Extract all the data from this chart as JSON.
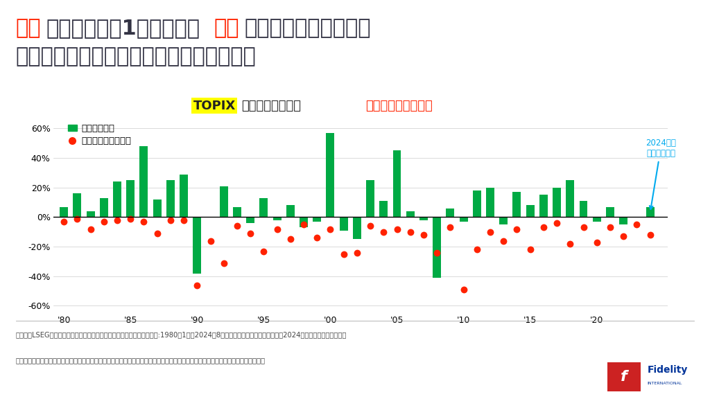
{
  "years": [
    1980,
    1981,
    1982,
    1983,
    1984,
    1985,
    1986,
    1987,
    1988,
    1989,
    1990,
    1991,
    1992,
    1993,
    1994,
    1995,
    1996,
    1997,
    1998,
    1999,
    2000,
    2001,
    2002,
    2003,
    2004,
    2005,
    2006,
    2007,
    2008,
    2009,
    2010,
    2011,
    2012,
    2013,
    2014,
    2015,
    2016,
    2017,
    2018,
    2019,
    2020,
    2021,
    2022,
    2023,
    2024
  ],
  "annual_returns": [
    7,
    16,
    4,
    13,
    24,
    25,
    48,
    12,
    25,
    29,
    -38,
    0,
    21,
    7,
    -4,
    13,
    -2,
    8,
    -7,
    -3,
    57,
    -9,
    -15,
    25,
    11,
    45,
    4,
    -2,
    -41,
    6,
    -3,
    18,
    20,
    -5,
    17,
    8,
    15,
    20,
    25,
    11,
    -3,
    7,
    -5,
    0,
    7
  ],
  "max_drawdowns": [
    -3,
    -1,
    -8,
    -3,
    -2,
    -1,
    -3,
    -11,
    -2,
    -2,
    -46,
    -16,
    -31,
    -6,
    -11,
    -23,
    -8,
    -15,
    -5,
    -14,
    -8,
    -25,
    -24,
    -6,
    -10,
    -8,
    -10,
    -12,
    -24,
    -7,
    -49,
    -22,
    -10,
    -16,
    -8,
    -22,
    -7,
    -4,
    -18,
    -7,
    -17,
    -7,
    -13,
    -5,
    -12
  ],
  "bar_color": "#00aa44",
  "dot_color": "#ff2200",
  "bg_color": "#ffffff",
  "annotation_text": "2024年は\n年初来プラス",
  "annotation_color": "#00aaee",
  "ylim": [
    -65,
    70
  ],
  "yticks": [
    -60,
    -40,
    -20,
    0,
    20,
    40,
    60
  ],
  "ytick_labels": [
    "-60%",
    "-40%",
    "-20%",
    "0%",
    "20%",
    "40%",
    "60%"
  ],
  "xtick_years": [
    1980,
    1985,
    1990,
    1995,
    2000,
    2005,
    2010,
    2015,
    2020
  ],
  "legend_bar": "年間リターン",
  "legend_dot": "年初来・最大下落率",
  "footer1": "（出所）LSEG、フィデリティ・インスティテュート。（注）データ期間:1980年1月～2024年8月２日、日次。価格リターン。「2024年」は、８月２日まで。",
  "footer2": "あらゆる記述やチャートは、例示目的もしくは過去の実績であり、将来の傾向、数値等を保証もしくは示唆するものではありません。",
  "title_color_red": "#ff2200",
  "title_color_green": "#008833",
  "title_color_dark": "#333344",
  "topix_bg_color": "#ffff00",
  "logo_bg": "#cc2222",
  "logo_text_color": "#003399",
  "chart_title_red": "#ff2200",
  "chart_title_dark": "#222222"
}
